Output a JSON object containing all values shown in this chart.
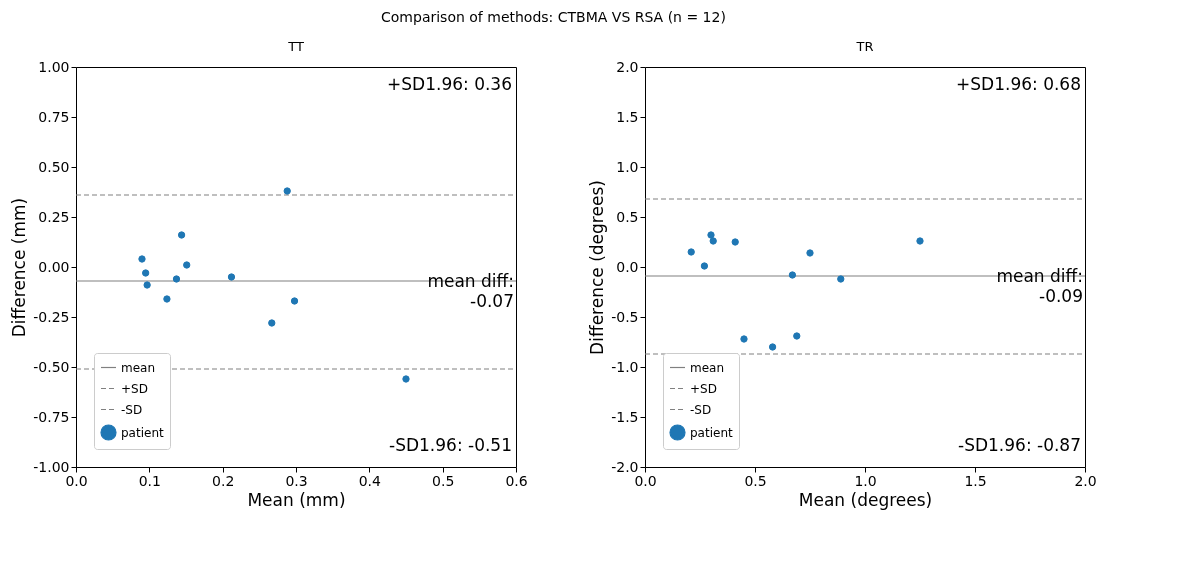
{
  "chart_data": [
    {
      "type": "scatter",
      "title": "TT",
      "xlabel": "Mean (mm)",
      "ylabel": "Difference (mm)",
      "xlim": [
        0,
        0.6
      ],
      "ylim": [
        -1,
        1
      ],
      "xticks": [
        {
          "value": 0,
          "label": "0.0"
        },
        {
          "value": 0.1,
          "label": "0.1"
        },
        {
          "value": 0.2,
          "label": "0.2"
        },
        {
          "value": 0.3,
          "label": "0.3"
        },
        {
          "value": 0.4,
          "label": "0.4"
        },
        {
          "value": 0.5,
          "label": "0.5"
        },
        {
          "value": 0.6,
          "label": "0.6"
        }
      ],
      "yticks": [
        {
          "value": -1,
          "label": "-1.00"
        },
        {
          "value": -0.75,
          "label": "-0.75"
        },
        {
          "value": -0.5,
          "label": "-0.50"
        },
        {
          "value": -0.25,
          "label": "-0.25"
        },
        {
          "value": 0,
          "label": "0.00"
        },
        {
          "value": 0.25,
          "label": "0.25"
        },
        {
          "value": 0.5,
          "label": "0.50"
        },
        {
          "value": 0.75,
          "label": "0.75"
        },
        {
          "value": 1,
          "label": "1.00"
        }
      ],
      "legend": "bottom left",
      "series": [
        {
          "name": "mean",
          "type": "line",
          "color": "#808080",
          "line_style": "solid",
          "x": [
            0,
            0.6
          ],
          "values": [
            -0.07,
            -0.07
          ]
        },
        {
          "name": "+SD",
          "type": "line",
          "color": "#808080",
          "line_style": "dashed",
          "x": [
            0,
            0.6
          ],
          "values": [
            0.36,
            0.36
          ]
        },
        {
          "name": "-SD",
          "type": "line",
          "color": "#808080",
          "line_style": "dashed",
          "x": [
            0,
            0.6
          ],
          "values": [
            -0.51,
            -0.51
          ]
        },
        {
          "name": "patient",
          "color": "#1f77b4",
          "marker": "circle",
          "x": [
            0.09,
            0.095,
            0.097,
            0.144,
            0.151,
            0.137,
            0.124,
            0.212,
            0.288,
            0.298,
            0.267,
            0.45
          ],
          "values": [
            0.04,
            -0.03,
            -0.09,
            0.16,
            0.01,
            -0.06,
            -0.16,
            -0.05,
            0.38,
            -0.17,
            -0.28,
            -0.56
          ]
        }
      ],
      "annotations": [
        "Comparison of methods: CTBMA VS RSA (n = 12)",
        "+SD1.96: 0.36",
        "-SD1.96: -0.51",
        {
          "text": "mean diff:\n-0.07",
          "x": 0.6,
          "y": -0.07
        }
      ]
    },
    {
      "type": "scatter",
      "title": "TR",
      "xlabel": "Mean (degrees)",
      "ylabel": "Difference (degrees)",
      "xlim": [
        0,
        2
      ],
      "ylim": [
        -2,
        2
      ],
      "xticks": [
        {
          "value": 0,
          "label": "0.0"
        },
        {
          "value": 0.5,
          "label": "0.5"
        },
        {
          "value": 1,
          "label": "1.0"
        },
        {
          "value": 1.5,
          "label": "1.5"
        },
        {
          "value": 2,
          "label": "2.0"
        }
      ],
      "yticks": [
        {
          "value": -2,
          "label": "-2.0"
        },
        {
          "value": -1.5,
          "label": "-1.5"
        },
        {
          "value": -1,
          "label": "-1.0"
        },
        {
          "value": -0.5,
          "label": "-0.5"
        },
        {
          "value": 0,
          "label": "0.0"
        },
        {
          "value": 0.5,
          "label": "0.5"
        },
        {
          "value": 1,
          "label": "1.0"
        },
        {
          "value": 1.5,
          "label": "1.5"
        },
        {
          "value": 2,
          "label": "2.0"
        }
      ],
      "legend": "bottom left",
      "series": [
        {
          "name": "mean",
          "type": "line",
          "color": "#808080",
          "line_style": "solid",
          "x": [
            0,
            2
          ],
          "values": [
            -0.09,
            -0.09
          ]
        },
        {
          "name": "+SD",
          "type": "line",
          "color": "#808080",
          "line_style": "dashed",
          "x": [
            0,
            2
          ],
          "values": [
            0.68,
            0.68
          ]
        },
        {
          "name": "-SD",
          "type": "line",
          "color": "#808080",
          "line_style": "dashed",
          "x": [
            0,
            2
          ],
          "values": [
            -0.87,
            -0.87
          ]
        },
        {
          "name": "patient",
          "color": "#1f77b4",
          "marker": "circle",
          "x": [
            0.21,
            0.27,
            0.3,
            0.31,
            0.41,
            0.75,
            0.67,
            0.89,
            1.25,
            0.45,
            0.58,
            0.69
          ],
          "values": [
            0.15,
            0.01,
            0.32,
            0.26,
            0.25,
            0.14,
            -0.08,
            -0.12,
            0.26,
            -0.72,
            -0.8,
            -0.69
          ]
        }
      ],
      "annotations": [
        "+SD1.96: 0.68",
        "-SD1.96: -0.87",
        {
          "text": "mean diff:\n-0.09",
          "x": 2,
          "y": -0.09
        }
      ]
    }
  ]
}
